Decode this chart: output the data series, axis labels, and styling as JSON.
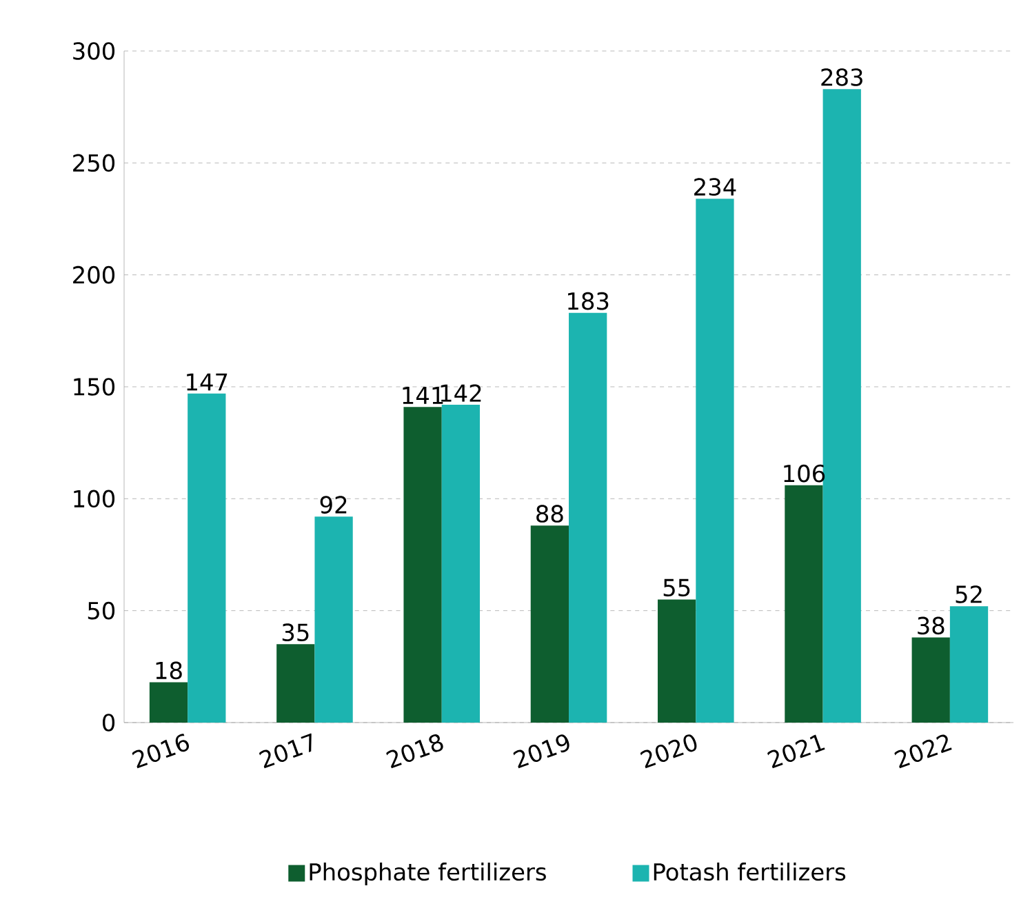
{
  "chart_data": {
    "type": "bar",
    "categories": [
      "2016",
      "2017",
      "2018",
      "2019",
      "2020",
      "2021",
      "2022"
    ],
    "series": [
      {
        "name": "Phosphate fertilizers",
        "color": "#0e5e2f",
        "values": [
          18,
          35,
          141,
          88,
          55,
          106,
          38
        ]
      },
      {
        "name": "Potash fertilizers",
        "color": "#1cb4b0",
        "values": [
          147,
          92,
          142,
          183,
          234,
          283,
          52
        ]
      }
    ],
    "ylim": [
      0,
      300
    ],
    "yticks": [
      0,
      50,
      100,
      150,
      200,
      250,
      300
    ],
    "grid": "y",
    "legend": "bottom",
    "data_labels": true
  }
}
